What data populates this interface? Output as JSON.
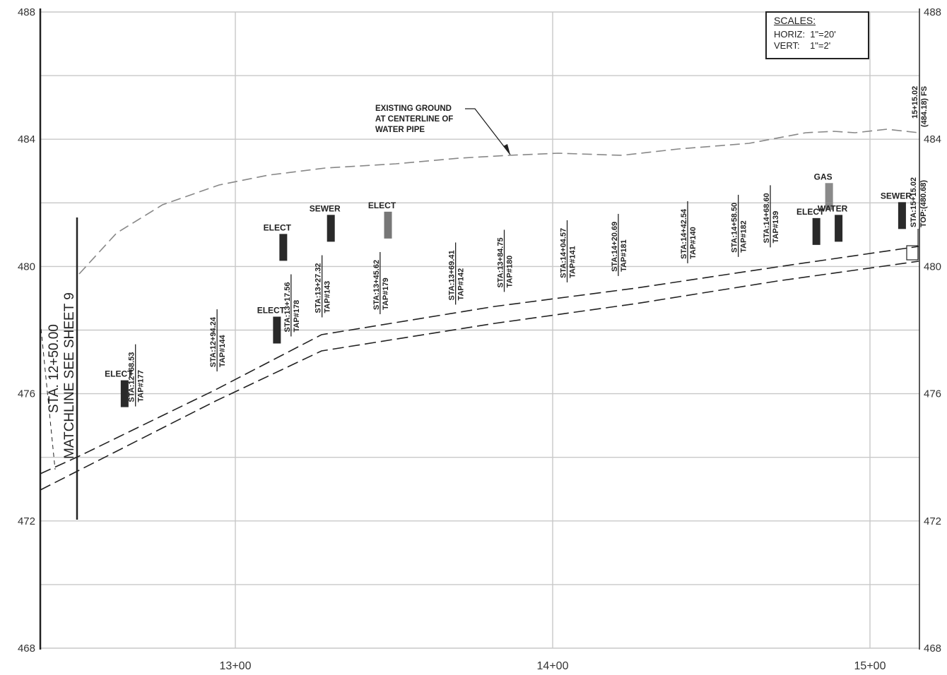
{
  "elevation_axis": {
    "ticks": [
      {
        "value": 488,
        "label": "488"
      },
      {
        "value": 484,
        "label": "484"
      },
      {
        "value": 480,
        "label": "480"
      },
      {
        "value": 476,
        "label": "476"
      },
      {
        "value": 472,
        "label": "472"
      },
      {
        "value": 468,
        "label": "468"
      }
    ],
    "min": 468,
    "max": 488
  },
  "station_axis": {
    "labels": [
      {
        "station": 1300,
        "label": "13+00"
      },
      {
        "station": 1400,
        "label": "14+00"
      },
      {
        "station": 1500,
        "label": "15+00"
      }
    ]
  },
  "scales": {
    "title": "SCALES:",
    "horiz_label": "HORIZ:",
    "horiz_value": "1\"=20'",
    "vert_label": "VERT:",
    "vert_value": "1\"=2'"
  },
  "matchline": {
    "line1": "STA. 12+50.00",
    "line2": "MATCHLINE SEE SHEET 9"
  },
  "ground_note": {
    "line1": "EXISTING GROUND",
    "line2": "AT CENTERLINE OF",
    "line3": "WATER PIPE"
  },
  "end_labels": {
    "ground_sta": "15+15.02",
    "ground_elev": "(484.18) FS",
    "pipe_sta": "STA:15+15.02",
    "pipe_top": "TOP:(480.68)"
  },
  "taps": [
    {
      "sta": "STA:12+68.53",
      "tap": "TAP#177",
      "station": 1268.53,
      "top": 475.6
    },
    {
      "sta": "STA:12+94.24",
      "tap": "TAP#144",
      "station": 1294.24,
      "top": 476.7
    },
    {
      "sta": "STA:13+17.56",
      "tap": "TAP#178",
      "station": 1317.56,
      "top": 477.8
    },
    {
      "sta": "STA:13+27.32",
      "tap": "TAP#143",
      "station": 1327.32,
      "top": 478.4
    },
    {
      "sta": "STA:13+45.62",
      "tap": "TAP#179",
      "station": 1345.62,
      "top": 478.5
    },
    {
      "sta": "STA:13+69.41",
      "tap": "TAP#142",
      "station": 1369.41,
      "top": 478.8
    },
    {
      "sta": "STA:13+84.75",
      "tap": "TAP#180",
      "station": 1384.75,
      "top": 479.2
    },
    {
      "sta": "STA:14+04.57",
      "tap": "TAP#141",
      "station": 1404.57,
      "top": 479.5
    },
    {
      "sta": "STA:14+20.69",
      "tap": "TAP#181",
      "station": 1420.69,
      "top": 479.7
    },
    {
      "sta": "STA:14+42.54",
      "tap": "TAP#140",
      "station": 1442.54,
      "top": 480.1
    },
    {
      "sta": "STA:14+58.50",
      "tap": "TAP#182",
      "station": 1458.5,
      "top": 480.3
    },
    {
      "sta": "STA:14+68.60",
      "tap": "TAP#139",
      "station": 1468.6,
      "top": 480.6
    }
  ],
  "utilities": [
    {
      "label": "ELECT",
      "station": 1265,
      "elev": 476.0,
      "color": "#2a2a2a"
    },
    {
      "label": "ELECT",
      "station": 1313,
      "elev": 478.0,
      "color": "#2a2a2a"
    },
    {
      "label": "ELECT",
      "station": 1315,
      "elev": 480.6,
      "color": "#2a2a2a"
    },
    {
      "label": "SEWER",
      "station": 1330,
      "elev": 481.2,
      "color": "#2a2a2a"
    },
    {
      "label": "ELECT",
      "station": 1348,
      "elev": 481.3,
      "color": "#777777"
    },
    {
      "label": "ELECT",
      "station": 1483,
      "elev": 481.1,
      "color": "#2a2a2a"
    },
    {
      "label": "GAS",
      "station": 1487,
      "elev": 482.2,
      "color": "#8a8a8a"
    },
    {
      "label": "WATER",
      "station": 1490,
      "elev": 481.2,
      "color": "#2a2a2a"
    },
    {
      "label": "SEWER",
      "station": 1510,
      "elev": 481.6,
      "color": "#2a2a2a"
    }
  ]
}
